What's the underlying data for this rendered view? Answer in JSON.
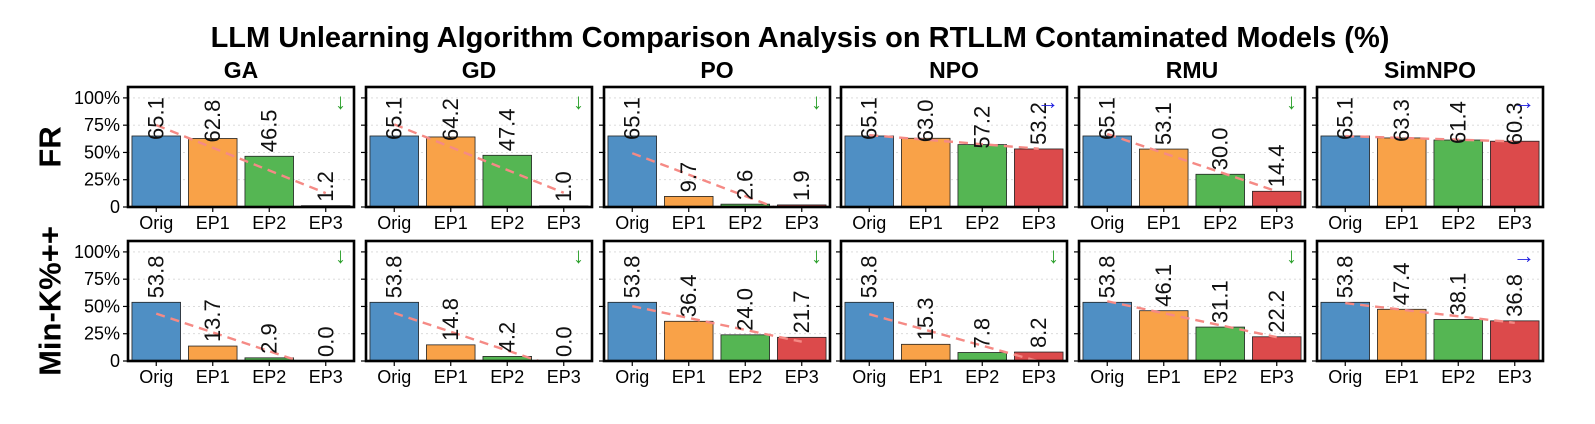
{
  "chart_data": {
    "type": "bar",
    "title": "LLM Unlearning Algorithm Comparison Analysis on RTLLM Contaminated Models (%)",
    "columns": [
      "GA",
      "GD",
      "PO",
      "NPO",
      "RMU",
      "SimNPO"
    ],
    "rows": [
      "FR",
      "Min-K%++"
    ],
    "categories": [
      "Orig",
      "EP1",
      "EP2",
      "EP3"
    ],
    "ylim": [
      0,
      110
    ],
    "yticks": [
      0,
      25,
      50,
      75,
      100
    ],
    "ytick_labels": [
      "0",
      "25%",
      "50%",
      "75%",
      "100%"
    ],
    "bar_colors": [
      "#4f8fc4",
      "#f9a248",
      "#55b653",
      "#dc4a4b"
    ],
    "trend_color": "#f58a85",
    "arrow_colors": {
      "down": "#2ca02c",
      "right": "#1f1fe0"
    },
    "grid": true,
    "panels": [
      {
        "row": "FR",
        "column": "GA",
        "values": [
          65.1,
          62.8,
          46.5,
          1.2
        ],
        "labels": [
          "65.1",
          "62.8",
          "46.5",
          "1.2"
        ],
        "arrow": "↓",
        "arrow_type": "down"
      },
      {
        "row": "FR",
        "column": "GD",
        "values": [
          65.1,
          64.2,
          47.4,
          1.0
        ],
        "labels": [
          "65.1",
          "64.2",
          "47.4",
          "1.0"
        ],
        "arrow": "↓",
        "arrow_type": "down"
      },
      {
        "row": "FR",
        "column": "PO",
        "values": [
          65.1,
          9.7,
          2.6,
          1.9
        ],
        "labels": [
          "65.1",
          "9.7",
          "2.6",
          "1.9"
        ],
        "arrow": "↓",
        "arrow_type": "down"
      },
      {
        "row": "FR",
        "column": "NPO",
        "values": [
          65.1,
          63.0,
          57.2,
          53.2
        ],
        "labels": [
          "65.1",
          "63.0",
          "57.2",
          "53.2"
        ],
        "arrow": "→",
        "arrow_type": "right"
      },
      {
        "row": "FR",
        "column": "RMU",
        "values": [
          65.1,
          53.1,
          30.0,
          14.4
        ],
        "labels": [
          "65.1",
          "53.1",
          "30.0",
          "14.4"
        ],
        "arrow": "↓",
        "arrow_type": "down"
      },
      {
        "row": "FR",
        "column": "SimNPO",
        "values": [
          65.1,
          63.3,
          61.4,
          60.3
        ],
        "labels": [
          "65.1",
          "63.3",
          "61.4",
          "60.3"
        ],
        "arrow": "→",
        "arrow_type": "right"
      },
      {
        "row": "Min-K%++",
        "column": "GA",
        "values": [
          53.8,
          13.7,
          2.9,
          0.0
        ],
        "labels": [
          "53.8",
          "13.7",
          "2.9",
          "0.0"
        ],
        "arrow": "↓",
        "arrow_type": "down"
      },
      {
        "row": "Min-K%++",
        "column": "GD",
        "values": [
          53.8,
          14.8,
          4.2,
          0.0
        ],
        "labels": [
          "53.8",
          "14.8",
          "4.2",
          "0.0"
        ],
        "arrow": "↓",
        "arrow_type": "down"
      },
      {
        "row": "Min-K%++",
        "column": "PO",
        "values": [
          53.8,
          36.4,
          24.0,
          21.7
        ],
        "labels": [
          "53.8",
          "36.4",
          "24.0",
          "21.7"
        ],
        "arrow": "↓",
        "arrow_type": "down"
      },
      {
        "row": "Min-K%++",
        "column": "NPO",
        "values": [
          53.8,
          15.3,
          7.8,
          8.2
        ],
        "labels": [
          "53.8",
          "15.3",
          "7.8",
          "8.2"
        ],
        "arrow": "↓",
        "arrow_type": "down"
      },
      {
        "row": "Min-K%++",
        "column": "RMU",
        "values": [
          53.8,
          46.1,
          31.1,
          22.2
        ],
        "labels": [
          "53.8",
          "46.1",
          "31.1",
          "22.2"
        ],
        "arrow": "↓",
        "arrow_type": "down"
      },
      {
        "row": "Min-K%++",
        "column": "SimNPO",
        "values": [
          53.8,
          47.4,
          38.1,
          36.8
        ],
        "labels": [
          "53.8",
          "47.4",
          "38.1",
          "36.8"
        ],
        "arrow": "→",
        "arrow_type": "right"
      }
    ]
  }
}
